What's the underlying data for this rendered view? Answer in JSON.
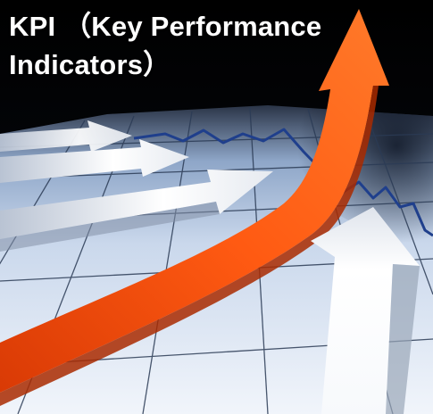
{
  "headline": {
    "line1": "KPI （Key Performance",
    "line2": "Indicators）"
  },
  "colors": {
    "background": "#000000",
    "floor": "#dce6f2",
    "grid": "#2b3b55",
    "trend_line": "#1f3f8c",
    "arrow_orange": "#ff5a10",
    "arrow_white": "#f2f4f7"
  },
  "icons": {
    "main_arrow": "orange-rising-arrow-icon",
    "side_arrows": "white-arrow-icon"
  }
}
